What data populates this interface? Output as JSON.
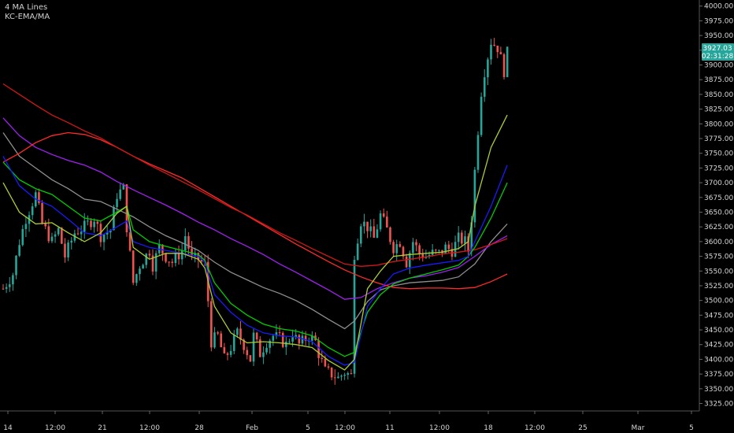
{
  "legend": {
    "line1": "4 MA Lines",
    "line2": "KC-EMA/MA"
  },
  "price_label": {
    "price": "3927.03",
    "countdown": "02:31:28",
    "color": "#26a69a"
  },
  "chart_data": {
    "type": "candlestick",
    "ylim": [
      3315,
      4005
    ],
    "y_ticks": [
      3325,
      3350,
      3375,
      3400,
      3425,
      3450,
      3475,
      3500,
      3525,
      3550,
      3575,
      3600,
      3625,
      3650,
      3675,
      3700,
      3725,
      3750,
      3775,
      3800,
      3825,
      3850,
      3875,
      3900,
      3925,
      3950,
      3975,
      4000
    ],
    "y_tick_labels": [
      "3325.00",
      "3350.00",
      "3375.00",
      "3400.00",
      "3425.00",
      "3450.00",
      "3475.00",
      "3500.00",
      "3525.00",
      "3550.00",
      "3575.00",
      "3600.00",
      "3625.00",
      "3650.00",
      "3675.00",
      "3700.00",
      "3725.00",
      "3750.00",
      "3775.00",
      "3800.00",
      "3825.00",
      "3850.00",
      "3875.00",
      "3900.00",
      "3925.00",
      "3950.00",
      "3975.00",
      "4000.00"
    ],
    "x_ticks": [
      "14",
      "12:00",
      "21",
      "12:00",
      "28",
      "Feb",
      "5",
      "12:00",
      "11",
      "12:00",
      "18",
      "12:00",
      "25",
      "Mar",
      "5"
    ],
    "up_color": "#26a69a",
    "down_color": "#ef5350",
    "price_path": [
      [
        0,
        3520
      ],
      [
        3,
        3545
      ],
      [
        5,
        3600
      ],
      [
        7,
        3640
      ],
      [
        10,
        3680
      ],
      [
        12,
        3630
      ],
      [
        15,
        3600
      ],
      [
        17,
        3620
      ],
      [
        19,
        3575
      ],
      [
        22,
        3615
      ],
      [
        25,
        3625
      ],
      [
        28,
        3640
      ],
      [
        30,
        3610
      ],
      [
        33,
        3620
      ],
      [
        35,
        3680
      ],
      [
        37,
        3690
      ],
      [
        38,
        3625
      ],
      [
        40,
        3530
      ],
      [
        42,
        3560
      ],
      [
        45,
        3585
      ],
      [
        46,
        3560
      ],
      [
        48,
        3590
      ],
      [
        50,
        3575
      ],
      [
        52,
        3565
      ],
      [
        55,
        3585
      ],
      [
        56,
        3610
      ],
      [
        58,
        3570
      ],
      [
        60,
        3570
      ],
      [
        62,
        3560
      ],
      [
        63,
        3500
      ],
      [
        64,
        3430
      ],
      [
        66,
        3440
      ],
      [
        68,
        3400
      ],
      [
        70,
        3420
      ],
      [
        72,
        3445
      ],
      [
        74,
        3425
      ],
      [
        76,
        3400
      ],
      [
        77,
        3440
      ],
      [
        79,
        3410
      ],
      [
        81,
        3430
      ],
      [
        83,
        3440
      ],
      [
        85,
        3435
      ],
      [
        87,
        3425
      ],
      [
        89,
        3445
      ],
      [
        91,
        3425
      ],
      [
        92,
        3430
      ],
      [
        94,
        3440
      ],
      [
        96,
        3430
      ],
      [
        97,
        3410
      ],
      [
        99,
        3380
      ],
      [
        101,
        3375
      ],
      [
        103,
        3368
      ],
      [
        105,
        3378
      ],
      [
        107,
        3372
      ],
      [
        108,
        3580
      ],
      [
        110,
        3635
      ],
      [
        112,
        3625
      ],
      [
        114,
        3605
      ],
      [
        116,
        3645
      ],
      [
        118,
        3620
      ],
      [
        120,
        3590
      ],
      [
        122,
        3600
      ],
      [
        124,
        3565
      ],
      [
        126,
        3600
      ],
      [
        128,
        3580
      ],
      [
        130,
        3575
      ],
      [
        132,
        3580
      ],
      [
        134,
        3580
      ],
      [
        136,
        3590
      ],
      [
        138,
        3585
      ],
      [
        140,
        3605
      ],
      [
        142,
        3600
      ],
      [
        143,
        3585
      ],
      [
        144,
        3640
      ],
      [
        145,
        3720
      ],
      [
        146,
        3790
      ],
      [
        147,
        3855
      ],
      [
        148,
        3890
      ],
      [
        150,
        3940
      ],
      [
        152,
        3930
      ],
      [
        154,
        3890
      ],
      [
        155,
        3920
      ]
    ],
    "series": [
      {
        "color": "#8e8e8e",
        "values": [
          [
            0,
            3785
          ],
          [
            5,
            3745
          ],
          [
            10,
            3725
          ],
          [
            15,
            3705
          ],
          [
            20,
            3690
          ],
          [
            25,
            3672
          ],
          [
            30,
            3668
          ],
          [
            35,
            3655
          ],
          [
            40,
            3642
          ],
          [
            45,
            3625
          ],
          [
            50,
            3610
          ],
          [
            55,
            3598
          ],
          [
            60,
            3585
          ],
          [
            65,
            3565
          ],
          [
            70,
            3548
          ],
          [
            75,
            3535
          ],
          [
            80,
            3522
          ],
          [
            85,
            3512
          ],
          [
            90,
            3500
          ],
          [
            95,
            3485
          ],
          [
            100,
            3468
          ],
          [
            105,
            3452
          ],
          [
            108,
            3465
          ],
          [
            112,
            3498
          ],
          [
            116,
            3518
          ],
          [
            120,
            3525
          ],
          [
            125,
            3530
          ],
          [
            130,
            3532
          ],
          [
            135,
            3534
          ],
          [
            140,
            3540
          ],
          [
            145,
            3562
          ],
          [
            150,
            3600
          ],
          [
            155,
            3630
          ]
        ]
      },
      {
        "color": "#a020f0",
        "values": [
          [
            0,
            3810
          ],
          [
            5,
            3780
          ],
          [
            10,
            3760
          ],
          [
            15,
            3748
          ],
          [
            20,
            3738
          ],
          [
            25,
            3730
          ],
          [
            30,
            3718
          ],
          [
            35,
            3702
          ],
          [
            40,
            3688
          ],
          [
            45,
            3675
          ],
          [
            50,
            3662
          ],
          [
            55,
            3648
          ],
          [
            60,
            3633
          ],
          [
            65,
            3620
          ],
          [
            70,
            3605
          ],
          [
            75,
            3592
          ],
          [
            80,
            3578
          ],
          [
            85,
            3562
          ],
          [
            90,
            3548
          ],
          [
            95,
            3533
          ],
          [
            100,
            3518
          ],
          [
            105,
            3502
          ],
          [
            110,
            3505
          ],
          [
            115,
            3520
          ],
          [
            120,
            3530
          ],
          [
            125,
            3538
          ],
          [
            130,
            3542
          ],
          [
            135,
            3548
          ],
          [
            140,
            3556
          ],
          [
            145,
            3575
          ],
          [
            150,
            3595
          ],
          [
            155,
            3610
          ]
        ]
      },
      {
        "color": "#ff2a2a",
        "values": [
          [
            0,
            3735
          ],
          [
            5,
            3750
          ],
          [
            10,
            3768
          ],
          [
            15,
            3780
          ],
          [
            20,
            3785
          ],
          [
            25,
            3782
          ],
          [
            30,
            3773
          ],
          [
            35,
            3760
          ],
          [
            40,
            3745
          ],
          [
            45,
            3732
          ],
          [
            50,
            3720
          ],
          [
            55,
            3708
          ],
          [
            60,
            3692
          ],
          [
            65,
            3676
          ],
          [
            70,
            3660
          ],
          [
            75,
            3644
          ],
          [
            80,
            3628
          ],
          [
            85,
            3612
          ],
          [
            90,
            3596
          ],
          [
            95,
            3581
          ],
          [
            100,
            3566
          ],
          [
            105,
            3552
          ],
          [
            110,
            3540
          ],
          [
            115,
            3530
          ],
          [
            120,
            3522
          ],
          [
            125,
            3520
          ],
          [
            130,
            3521
          ],
          [
            135,
            3521
          ],
          [
            140,
            3520
          ],
          [
            145,
            3522
          ],
          [
            150,
            3532
          ],
          [
            155,
            3545
          ]
        ]
      },
      {
        "color": "#d01818",
        "values": [
          [
            0,
            3868
          ],
          [
            5,
            3850
          ],
          [
            10,
            3832
          ],
          [
            15,
            3815
          ],
          [
            20,
            3802
          ],
          [
            25,
            3788
          ],
          [
            30,
            3776
          ],
          [
            35,
            3760
          ],
          [
            40,
            3745
          ],
          [
            45,
            3730
          ],
          [
            50,
            3716
          ],
          [
            55,
            3702
          ],
          [
            60,
            3688
          ],
          [
            65,
            3673
          ],
          [
            70,
            3658
          ],
          [
            75,
            3645
          ],
          [
            80,
            3630
          ],
          [
            85,
            3615
          ],
          [
            90,
            3602
          ],
          [
            95,
            3588
          ],
          [
            100,
            3575
          ],
          [
            105,
            3562
          ],
          [
            110,
            3558
          ],
          [
            115,
            3560
          ],
          [
            120,
            3566
          ],
          [
            125,
            3570
          ],
          [
            130,
            3574
          ],
          [
            135,
            3579
          ],
          [
            140,
            3582
          ],
          [
            145,
            3586
          ],
          [
            150,
            3595
          ],
          [
            155,
            3605
          ]
        ]
      },
      {
        "color": "#00cc00",
        "values": [
          [
            0,
            3735
          ],
          [
            5,
            3705
          ],
          [
            10,
            3690
          ],
          [
            15,
            3680
          ],
          [
            20,
            3660
          ],
          [
            25,
            3640
          ],
          [
            30,
            3635
          ],
          [
            35,
            3650
          ],
          [
            38,
            3660
          ],
          [
            40,
            3620
          ],
          [
            45,
            3600
          ],
          [
            50,
            3592
          ],
          [
            55,
            3585
          ],
          [
            60,
            3578
          ],
          [
            62,
            3568
          ],
          [
            65,
            3530
          ],
          [
            70,
            3495
          ],
          [
            75,
            3475
          ],
          [
            80,
            3460
          ],
          [
            85,
            3452
          ],
          [
            90,
            3448
          ],
          [
            95,
            3440
          ],
          [
            100,
            3420
          ],
          [
            105,
            3405
          ],
          [
            108,
            3412
          ],
          [
            112,
            3480
          ],
          [
            116,
            3510
          ],
          [
            120,
            3528
          ],
          [
            125,
            3538
          ],
          [
            130,
            3545
          ],
          [
            135,
            3552
          ],
          [
            140,
            3560
          ],
          [
            143,
            3575
          ],
          [
            145,
            3590
          ],
          [
            150,
            3640
          ],
          [
            155,
            3700
          ]
        ]
      },
      {
        "color": "#1a1aff",
        "values": [
          [
            0,
            3745
          ],
          [
            5,
            3695
          ],
          [
            10,
            3672
          ],
          [
            15,
            3660
          ],
          [
            20,
            3638
          ],
          [
            25,
            3615
          ],
          [
            30,
            3610
          ],
          [
            35,
            3625
          ],
          [
            38,
            3635
          ],
          [
            40,
            3600
          ],
          [
            45,
            3590
          ],
          [
            50,
            3585
          ],
          [
            55,
            3580
          ],
          [
            60,
            3575
          ],
          [
            62,
            3565
          ],
          [
            65,
            3510
          ],
          [
            70,
            3480
          ],
          [
            75,
            3458
          ],
          [
            80,
            3445
          ],
          [
            85,
            3440
          ],
          [
            90,
            3438
          ],
          [
            95,
            3430
          ],
          [
            100,
            3405
          ],
          [
            105,
            3390
          ],
          [
            108,
            3395
          ],
          [
            112,
            3490
          ],
          [
            116,
            3520
          ],
          [
            120,
            3545
          ],
          [
            125,
            3555
          ],
          [
            130,
            3560
          ],
          [
            135,
            3564
          ],
          [
            140,
            3568
          ],
          [
            143,
            3575
          ],
          [
            145,
            3600
          ],
          [
            150,
            3660
          ],
          [
            155,
            3730
          ]
        ]
      },
      {
        "color": "#aacc33",
        "values": [
          [
            0,
            3700
          ],
          [
            5,
            3650
          ],
          [
            10,
            3630
          ],
          [
            15,
            3632
          ],
          [
            20,
            3615
          ],
          [
            25,
            3600
          ],
          [
            30,
            3615
          ],
          [
            35,
            3648
          ],
          [
            38,
            3660
          ],
          [
            40,
            3590
          ],
          [
            45,
            3570
          ],
          [
            50,
            3580
          ],
          [
            55,
            3580
          ],
          [
            60,
            3570
          ],
          [
            62,
            3555
          ],
          [
            65,
            3490
          ],
          [
            70,
            3445
          ],
          [
            75,
            3428
          ],
          [
            80,
            3430
          ],
          [
            85,
            3428
          ],
          [
            90,
            3425
          ],
          [
            95,
            3420
          ],
          [
            100,
            3398
          ],
          [
            105,
            3382
          ],
          [
            108,
            3400
          ],
          [
            112,
            3520
          ],
          [
            116,
            3550
          ],
          [
            120,
            3575
          ],
          [
            125,
            3578
          ],
          [
            130,
            3580
          ],
          [
            135,
            3582
          ],
          [
            140,
            3588
          ],
          [
            143,
            3600
          ],
          [
            145,
            3660
          ],
          [
            150,
            3760
          ],
          [
            155,
            3815
          ]
        ]
      }
    ]
  }
}
